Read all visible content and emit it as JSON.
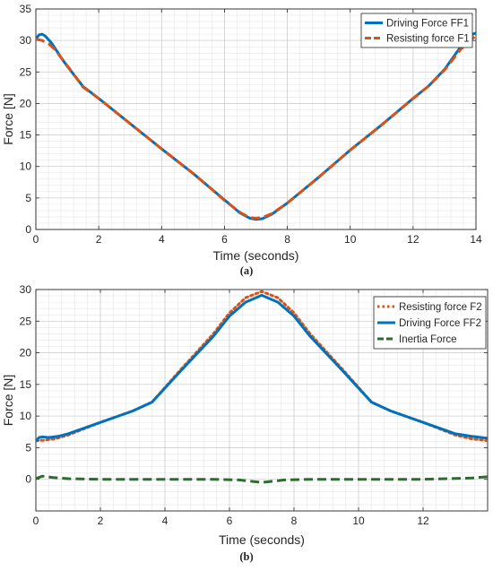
{
  "chart_data": [
    {
      "type": "line",
      "panel_label": "(a)",
      "xlabel": "Time (seconds)",
      "ylabel": "Force [N]",
      "xlim": [
        0,
        14
      ],
      "ylim": [
        0,
        35
      ],
      "x_ticks": [
        0,
        2,
        4,
        6,
        8,
        10,
        12,
        14
      ],
      "y_ticks": [
        0,
        5,
        10,
        15,
        20,
        25,
        30,
        35
      ],
      "grid": true,
      "minor_grid": true,
      "legend_position": "top-right",
      "series": [
        {
          "name": "Driving Force FF1",
          "color": "#0072BD",
          "style": "solid",
          "points": [
            [
              0.0,
              30.2
            ],
            [
              0.1,
              30.9
            ],
            [
              0.2,
              31.0
            ],
            [
              0.3,
              30.7
            ],
            [
              0.5,
              29.6
            ],
            [
              0.8,
              27.3
            ],
            [
              1.0,
              25.9
            ],
            [
              1.5,
              22.7
            ],
            [
              2.0,
              20.8
            ],
            [
              3.0,
              16.8
            ],
            [
              4.0,
              12.8
            ],
            [
              5.0,
              8.9
            ],
            [
              5.5,
              6.8
            ],
            [
              6.0,
              4.7
            ],
            [
              6.5,
              2.6
            ],
            [
              6.8,
              1.8
            ],
            [
              7.0,
              1.6
            ],
            [
              7.2,
              1.7
            ],
            [
              7.5,
              2.4
            ],
            [
              8.0,
              4.2
            ],
            [
              9.0,
              8.3
            ],
            [
              10.0,
              12.6
            ],
            [
              11.0,
              16.6
            ],
            [
              12.0,
              20.8
            ],
            [
              12.5,
              22.8
            ],
            [
              13.0,
              25.4
            ],
            [
              13.5,
              28.9
            ],
            [
              13.8,
              30.8
            ],
            [
              14.0,
              31.2
            ]
          ]
        },
        {
          "name": "Resisting force F1",
          "color": "#D95319",
          "style": "dashed",
          "points": [
            [
              0.0,
              30.2
            ],
            [
              0.2,
              30.0
            ],
            [
              0.4,
              29.5
            ],
            [
              0.6,
              28.6
            ],
            [
              1.0,
              26.0
            ],
            [
              1.5,
              22.6
            ],
            [
              2.0,
              20.8
            ],
            [
              3.0,
              16.8
            ],
            [
              4.0,
              12.8
            ],
            [
              5.0,
              8.9
            ],
            [
              5.5,
              6.8
            ],
            [
              6.0,
              4.6
            ],
            [
              6.5,
              2.7
            ],
            [
              6.8,
              1.9
            ],
            [
              7.0,
              1.8
            ],
            [
              7.2,
              1.9
            ],
            [
              7.5,
              2.5
            ],
            [
              8.0,
              4.2
            ],
            [
              9.0,
              8.3
            ],
            [
              10.0,
              12.6
            ],
            [
              11.0,
              16.6
            ],
            [
              12.0,
              20.8
            ],
            [
              12.5,
              22.8
            ],
            [
              13.0,
              25.3
            ],
            [
              13.5,
              28.5
            ],
            [
              13.8,
              30.0
            ],
            [
              14.0,
              30.7
            ]
          ]
        }
      ]
    },
    {
      "type": "line",
      "panel_label": "(b)",
      "xlabel": "Time (seconds)",
      "ylabel": "Force [N]",
      "xlim": [
        0,
        14
      ],
      "ylim": [
        -5,
        30
      ],
      "x_ticks": [
        0,
        2,
        4,
        6,
        8,
        10,
        12
      ],
      "y_ticks": [
        0,
        5,
        10,
        15,
        20,
        25,
        30
      ],
      "grid": true,
      "minor_grid": true,
      "legend_position": "top-right",
      "series": [
        {
          "name": "Resisting force F2",
          "color": "#D95319",
          "style": "dotted",
          "points": [
            [
              0.0,
              6.1
            ],
            [
              0.3,
              6.2
            ],
            [
              0.6,
              6.4
            ],
            [
              1.0,
              7.0
            ],
            [
              1.5,
              8.0
            ],
            [
              2.0,
              9.0
            ],
            [
              3.0,
              10.8
            ],
            [
              3.6,
              12.2
            ],
            [
              4.5,
              17.4
            ],
            [
              5.5,
              23.0
            ],
            [
              6.0,
              26.3
            ],
            [
              6.5,
              28.7
            ],
            [
              7.0,
              29.7
            ],
            [
              7.5,
              28.7
            ],
            [
              8.0,
              26.3
            ],
            [
              8.5,
              23.0
            ],
            [
              9.5,
              17.4
            ],
            [
              10.4,
              12.2
            ],
            [
              11.0,
              10.8
            ],
            [
              12.0,
              9.0
            ],
            [
              12.5,
              8.0
            ],
            [
              13.0,
              7.0
            ],
            [
              13.5,
              6.4
            ],
            [
              14.0,
              6.1
            ]
          ]
        },
        {
          "name": "Driving Force FF2",
          "color": "#0072BD",
          "style": "solid",
          "points": [
            [
              0.0,
              6.0
            ],
            [
              0.1,
              6.6
            ],
            [
              0.2,
              6.7
            ],
            [
              0.4,
              6.6
            ],
            [
              0.7,
              6.8
            ],
            [
              1.0,
              7.2
            ],
            [
              1.5,
              8.1
            ],
            [
              2.0,
              9.0
            ],
            [
              3.0,
              10.8
            ],
            [
              3.6,
              12.2
            ],
            [
              4.5,
              17.2
            ],
            [
              5.5,
              22.6
            ],
            [
              6.0,
              25.8
            ],
            [
              6.5,
              28.0
            ],
            [
              7.0,
              29.1
            ],
            [
              7.5,
              28.0
            ],
            [
              8.0,
              25.8
            ],
            [
              8.5,
              22.6
            ],
            [
              9.5,
              17.2
            ],
            [
              10.4,
              12.2
            ],
            [
              11.0,
              10.8
            ],
            [
              12.0,
              9.0
            ],
            [
              12.5,
              8.1
            ],
            [
              13.0,
              7.2
            ],
            [
              13.5,
              6.8
            ],
            [
              14.0,
              6.5
            ]
          ]
        },
        {
          "name": "Inertia Force",
          "color": "#2E6B2E",
          "style": "dashed",
          "points": [
            [
              0.0,
              0.1
            ],
            [
              0.2,
              0.5
            ],
            [
              0.5,
              0.3
            ],
            [
              1.0,
              0.1
            ],
            [
              2.0,
              0.0
            ],
            [
              4.0,
              0.0
            ],
            [
              5.5,
              0.0
            ],
            [
              6.3,
              -0.1
            ],
            [
              7.0,
              -0.5
            ],
            [
              7.7,
              -0.1
            ],
            [
              8.5,
              0.0
            ],
            [
              10.0,
              0.0
            ],
            [
              12.0,
              0.0
            ],
            [
              13.5,
              0.2
            ],
            [
              14.0,
              0.4
            ]
          ]
        }
      ]
    }
  ]
}
